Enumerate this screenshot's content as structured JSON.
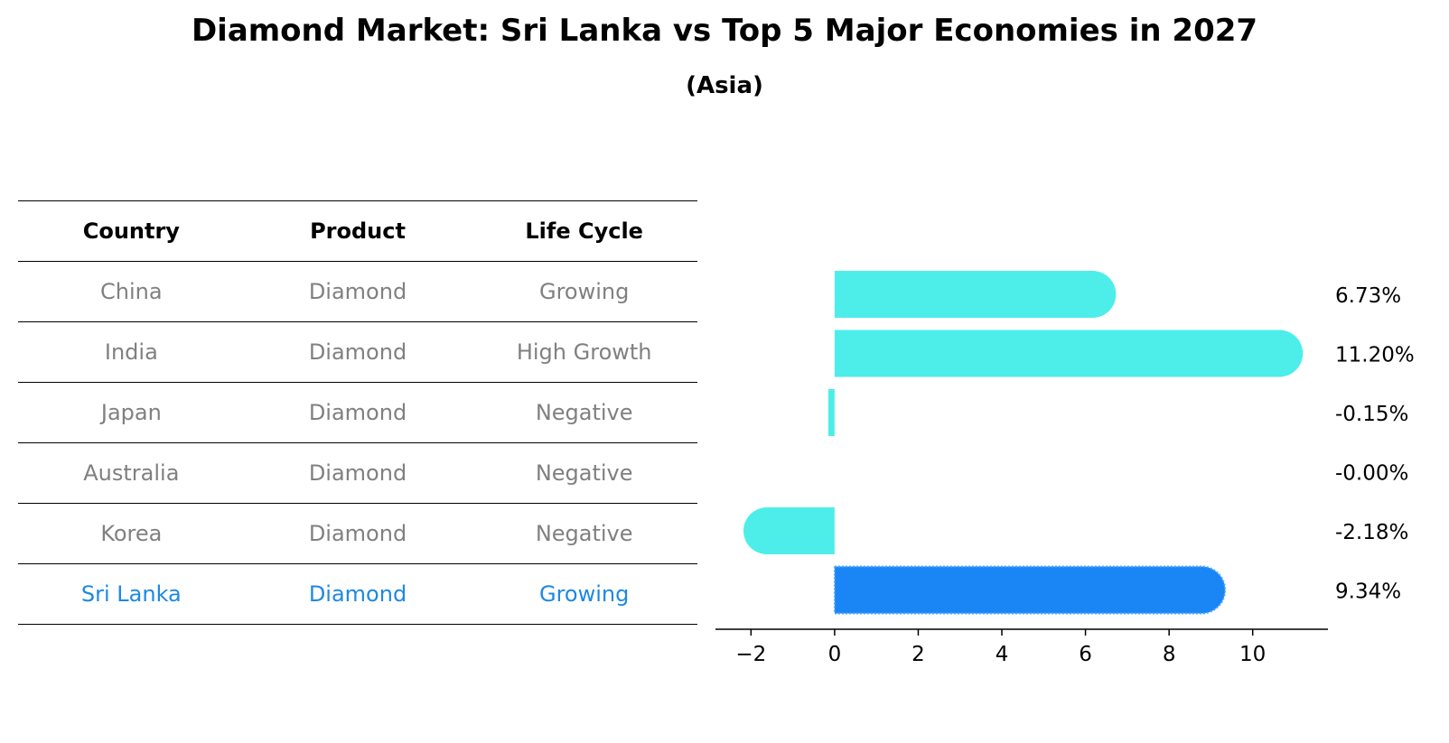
{
  "title": "Diamond Market: Sri Lanka vs Top 5 Major Economies in 2027",
  "subtitle": "(Asia)",
  "table": {
    "headers": [
      "Country",
      "Product",
      "Life Cycle"
    ],
    "rows": [
      [
        "China",
        "Diamond",
        "Growing"
      ],
      [
        "India",
        "Diamond",
        "High Growth"
      ],
      [
        "Japan",
        "Diamond",
        "Negative"
      ],
      [
        "Australia",
        "Diamond",
        "Negative"
      ],
      [
        "Korea",
        "Diamond",
        "Negative"
      ],
      [
        "Sri Lanka",
        "Diamond",
        "Growing"
      ]
    ],
    "highlight_row": 5
  },
  "chart_data": {
    "type": "bar",
    "orientation": "horizontal",
    "categories": [
      "China",
      "India",
      "Japan",
      "Australia",
      "Korea",
      "Sri Lanka"
    ],
    "values": [
      6.73,
      11.2,
      -0.15,
      -0.0,
      -2.18,
      9.34
    ],
    "value_labels": [
      "6.73%",
      "11.20%",
      "-0.15%",
      "-0.00%",
      "-2.18%",
      "9.34%"
    ],
    "xlim": [
      -2.85,
      11.8
    ],
    "xticks": [
      -2,
      0,
      2,
      4,
      6,
      8,
      10
    ],
    "xtick_labels": [
      "−2",
      "0",
      "2",
      "4",
      "6",
      "8",
      "10"
    ],
    "colors": {
      "default": "#4deeea",
      "highlight": "#1a85f5"
    },
    "highlight_index": 5,
    "grid": false
  }
}
